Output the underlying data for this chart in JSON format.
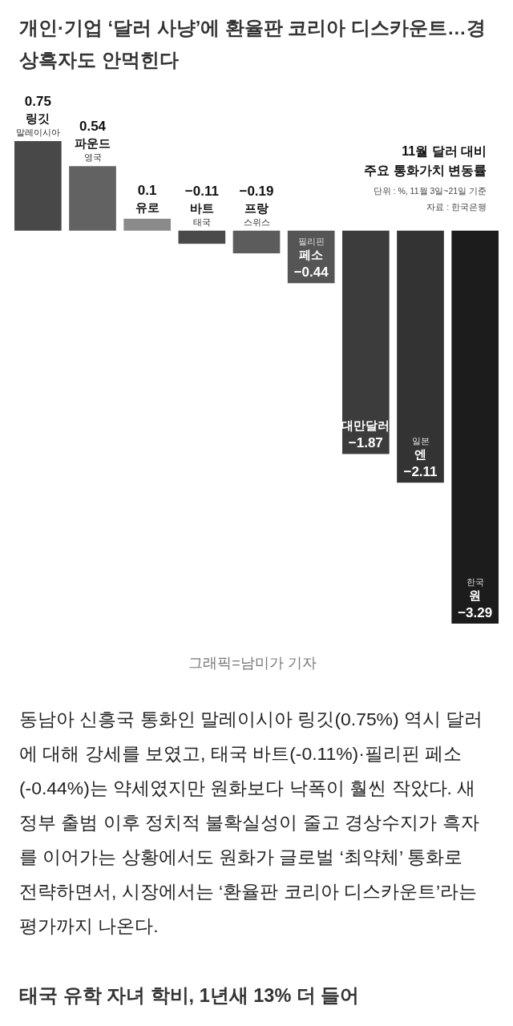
{
  "chart_data": {
    "type": "bar",
    "title": "11월 달러 대비\n주요 통화가치 변동률",
    "subtitle": "단위 : %, 11월 3일~21일 기준",
    "categories": [
      "링깃\n말레이시아",
      "파운드\n영국",
      "유로",
      "바트\n태국",
      "프랑\n스위스",
      "필리핀\n페소",
      "대만달러",
      "일본\n엔",
      "한국\n원"
    ],
    "values": [
      0.75,
      0.54,
      0.1,
      -0.11,
      -0.19,
      -0.44,
      -1.87,
      -2.11,
      -3.29
    ],
    "colors": [
      "#484848",
      "#626262",
      "#8a8a8a",
      "#4a4a4a",
      "#5c5c5c",
      "#555555",
      "#3c3c3c",
      "#333333",
      "#1c1c1c"
    ],
    "data_labels": true,
    "annotations": [
      "개인·기업 ‘달러 사냥’에 환율판 코리아 디스카운트…경상흑자도 안먹힌다",
      "자료 : 한국은행",
      "그래픽=남미가 기자",
      "동남아 신흥국 통화인 말레이시아 링깃(0.75%) 역시 달러에 대해 강세를 보였고, 태국 바트(-0.11%)·필리핀 페소(-0.44%)는 약세였지만 원화보다 낙폭이 훨씬 작았다. 새 정부 출범 이후 정치적 불확실성이 줄고 경상수지가 흑자를 이어가는 상황에서도 원화가 글로벌 ‘최약체’ 통화로 전략하면서, 시장에서는 ‘환율판 코리아 디스카운트’라는 평가까지 나온다.",
      "태국 유학 자녀 학비, 1년새 13% 더 들어"
    ]
  }
}
